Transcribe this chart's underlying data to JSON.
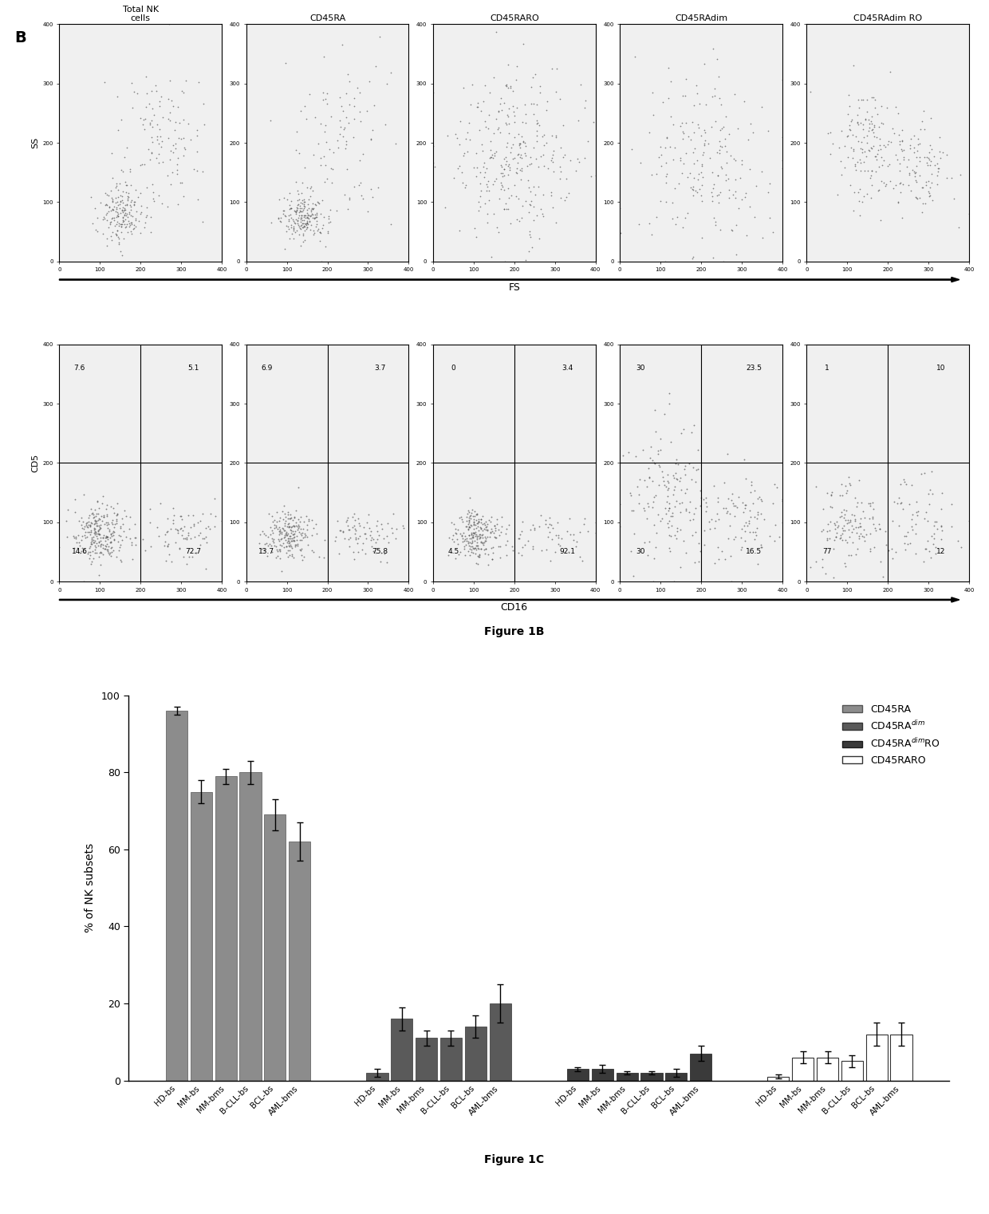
{
  "fig1b_titles_display": [
    "Total NK\ncells",
    "CD45RA",
    "CD45RARO",
    "CD45RAdim",
    "CD45RAdim RO"
  ],
  "row1_ylabel": "SS",
  "row2_ylabel": "CD5",
  "row1_xlabel": "FS",
  "row2_xlabel": "CD16",
  "quadrant_values": [
    [
      [
        "7.6",
        "5.1"
      ],
      [
        "14.6",
        "72.7"
      ]
    ],
    [
      [
        "6.9",
        "3.7"
      ],
      [
        "13.7",
        "75.8"
      ]
    ],
    [
      [
        "0",
        "3.4"
      ],
      [
        "4.5",
        "92.1"
      ]
    ],
    [
      [
        "30",
        "23.5"
      ],
      [
        "30",
        "16.5"
      ]
    ],
    [
      [
        "1",
        "10"
      ],
      [
        "77",
        "12"
      ]
    ]
  ],
  "bar_chart": {
    "groups": [
      "CD45RA",
      "CD45RAdim",
      "CD45RAdimRO",
      "CD45RARO"
    ],
    "categories": [
      "HD-bs",
      "MM-bs",
      "MM-bms",
      "B-CLL-bs",
      "BCL-bs",
      "AML-bms"
    ],
    "values": {
      "CD45RA": [
        96,
        75,
        79,
        80,
        69,
        62
      ],
      "CD45RAdim": [
        2,
        16,
        11,
        11,
        14,
        20
      ],
      "CD45RAdimRO": [
        3,
        3,
        2,
        2,
        2,
        7
      ],
      "CD45RARO": [
        1,
        6,
        6,
        5,
        12,
        12
      ]
    },
    "errors": {
      "CD45RA": [
        1,
        3,
        2,
        3,
        4,
        5
      ],
      "CD45RAdim": [
        1,
        3,
        2,
        2,
        3,
        5
      ],
      "CD45RAdimRO": [
        0.5,
        1,
        0.5,
        0.5,
        1,
        2
      ],
      "CD45RARO": [
        0.5,
        1.5,
        1.5,
        1.5,
        3,
        3
      ]
    },
    "bar_colors": {
      "CD45RA": "#8c8c8c",
      "CD45RAdim": "#5a5a5a",
      "CD45RAdimRO": "#3a3a3a",
      "CD45RARO": "#ffffff"
    },
    "bar_edgecolors": {
      "CD45RA": "#555555",
      "CD45RAdim": "#333333",
      "CD45RAdimRO": "#1a1a1a",
      "CD45RARO": "#333333"
    },
    "ylim": [
      0,
      100
    ],
    "yticks": [
      0,
      20,
      40,
      60,
      80,
      100
    ],
    "ylabel": "% of NK subsets",
    "figure_caption": "Figure 1C"
  },
  "figure1b_caption": "Figure 1B",
  "background_color": "#ffffff",
  "dot_color": "#555555",
  "scatter_dot_size": 1.5,
  "panel_label": "B"
}
